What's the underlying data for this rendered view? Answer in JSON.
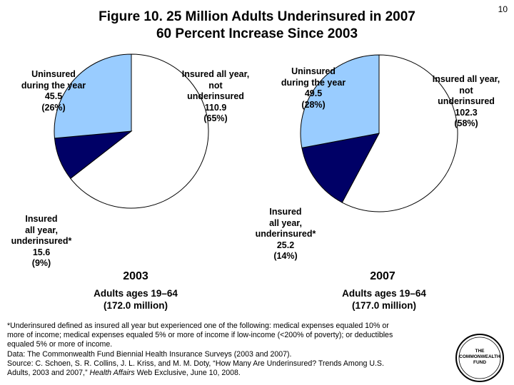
{
  "slide_number": "10",
  "title_line1": "Figure 10. 25 Million Adults Underinsured in 2007",
  "title_line2": "60 Percent Increase Since 2003",
  "chart_data": [
    {
      "type": "pie",
      "year": "2003",
      "subtitle_line1": "Adults ages 19–64",
      "subtitle_line2": "(172.0 million)",
      "slices": [
        {
          "label": [
            "Insured all year,",
            "not",
            "underinsured"
          ],
          "value": 110.9,
          "percent": "(65%)",
          "color": "#ffffff"
        },
        {
          "label": [
            "Insured",
            "all year,",
            "underinsured*"
          ],
          "value": 15.6,
          "percent": "(9%)",
          "color": "#000066"
        },
        {
          "label": [
            "Uninsured",
            "during the year"
          ],
          "value": 45.5,
          "percent": "(26%)",
          "color": "#99ccff"
        }
      ]
    },
    {
      "type": "pie",
      "year": "2007",
      "subtitle_line1": "Adults ages 19–64",
      "subtitle_line2": "(177.0 million)",
      "slices": [
        {
          "label": [
            "Insured all year,",
            "not",
            "underinsured"
          ],
          "value": 102.3,
          "percent": "(58%)",
          "color": "#ffffff"
        },
        {
          "label": [
            "Insured",
            "all year,",
            "underinsured*"
          ],
          "value": 25.2,
          "percent": "(14%)",
          "color": "#000066"
        },
        {
          "label": [
            "Uninsured",
            "during the year"
          ],
          "value": 49.5,
          "percent": "(28%)",
          "color": "#99ccff"
        }
      ]
    }
  ],
  "footnote": [
    "*Underinsured defined as insured all year but experienced one of the following: medical expenses equaled 10% or",
    "more of income; medical expenses equaled 5% or more of income if low-income (<200% of poverty); or deductibles",
    "equaled 5% or more of income.",
    "Data: The Commonwealth Fund Biennial Health Insurance Surveys (2003 and 2007).",
    "Source: C. Schoen, S. R. Collins, J. L. Kriss, and M. M. Doty, “How Many Are Underinsured? Trends Among U.S."
  ],
  "footnote_last_prefix": "Adults, 2003 and 2007,” ",
  "footnote_last_italic": "Health Affairs",
  "footnote_last_suffix": " Web Exclusive, June 10, 2008.",
  "logo_text": [
    "THE",
    "COMMONWEALTH",
    "FUND"
  ]
}
